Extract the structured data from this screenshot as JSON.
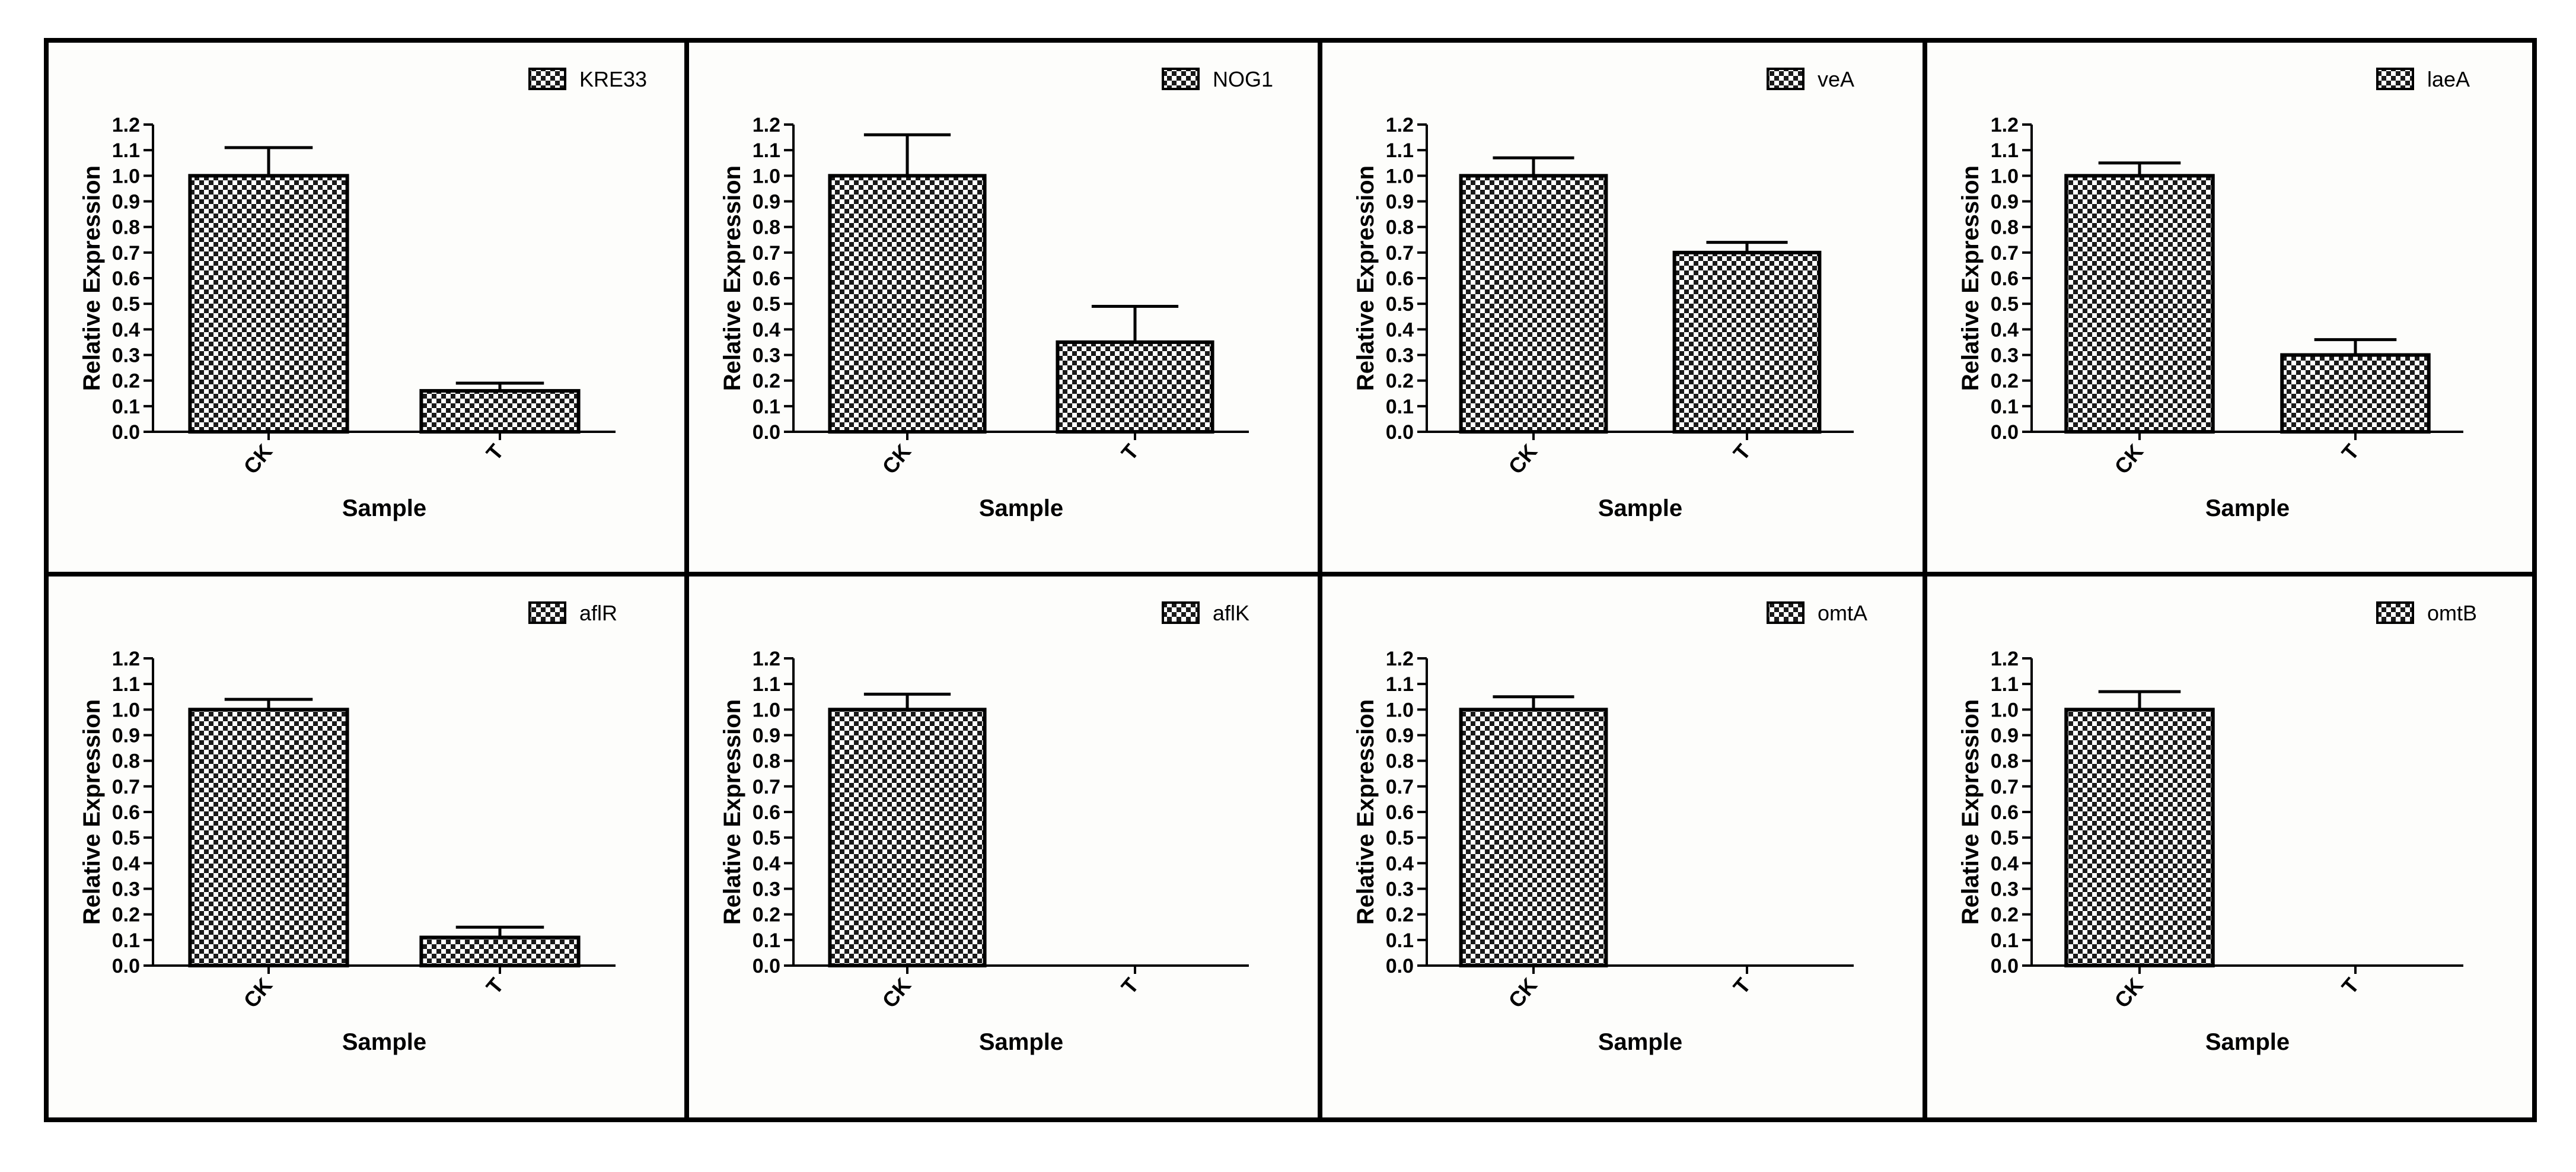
{
  "figure": {
    "background": "#fdfdfb",
    "frame_color": "#000000"
  },
  "chart_data": [
    {
      "type": "bar",
      "legend": "KRE33",
      "categories": [
        "CK",
        "T"
      ],
      "values": [
        1.0,
        0.16
      ],
      "errors": [
        0.11,
        0.03
      ],
      "xlabel": "Sample",
      "ylabel": "Relative Expression",
      "ylim": [
        0,
        1.2
      ],
      "yticks": [
        "0.0",
        "0.1",
        "0.2",
        "0.3",
        "0.4",
        "0.5",
        "0.6",
        "0.7",
        "0.8",
        "0.9",
        "1.0",
        "1.1",
        "1.2"
      ],
      "legend_position": "top-right"
    },
    {
      "type": "bar",
      "legend": "NOG1",
      "categories": [
        "CK",
        "T"
      ],
      "values": [
        1.0,
        0.35
      ],
      "errors": [
        0.16,
        0.14
      ],
      "xlabel": "Sample",
      "ylabel": "Relative Expression",
      "ylim": [
        0,
        1.2
      ],
      "yticks": [
        "0.0",
        "0.1",
        "0.2",
        "0.3",
        "0.4",
        "0.5",
        "0.6",
        "0.7",
        "0.8",
        "0.9",
        "1.0",
        "1.1",
        "1.2"
      ],
      "legend_position": "top-right"
    },
    {
      "type": "bar",
      "legend": "veA",
      "categories": [
        "CK",
        "T"
      ],
      "values": [
        1.0,
        0.7
      ],
      "errors": [
        0.07,
        0.04
      ],
      "xlabel": "Sample",
      "ylabel": "Relative Expression",
      "ylim": [
        0,
        1.2
      ],
      "yticks": [
        "0.0",
        "0.1",
        "0.2",
        "0.3",
        "0.4",
        "0.5",
        "0.6",
        "0.7",
        "0.8",
        "0.9",
        "1.0",
        "1.1",
        "1.2"
      ],
      "legend_position": "top-right"
    },
    {
      "type": "bar",
      "legend": "laeA",
      "categories": [
        "CK",
        "T"
      ],
      "values": [
        1.0,
        0.3
      ],
      "errors": [
        0.05,
        0.06
      ],
      "xlabel": "Sample",
      "ylabel": "Relative Expression",
      "ylim": [
        0,
        1.2
      ],
      "yticks": [
        "0.0",
        "0.1",
        "0.2",
        "0.3",
        "0.4",
        "0.5",
        "0.6",
        "0.7",
        "0.8",
        "0.9",
        "1.0",
        "1.1",
        "1.2"
      ],
      "legend_position": "top-right"
    },
    {
      "type": "bar",
      "legend": "aflR",
      "categories": [
        "CK",
        "T"
      ],
      "values": [
        1.0,
        0.11
      ],
      "errors": [
        0.04,
        0.04
      ],
      "xlabel": "Sample",
      "ylabel": "Relative Expression",
      "ylim": [
        0,
        1.2
      ],
      "yticks": [
        "0.0",
        "0.1",
        "0.2",
        "0.3",
        "0.4",
        "0.5",
        "0.6",
        "0.7",
        "0.8",
        "0.9",
        "1.0",
        "1.1",
        "1.2"
      ],
      "legend_position": "top-right"
    },
    {
      "type": "bar",
      "legend": "aflK",
      "categories": [
        "CK",
        "T"
      ],
      "values": [
        1.0,
        0.0
      ],
      "errors": [
        0.06,
        0.0
      ],
      "xlabel": "Sample",
      "ylabel": "Relative Expression",
      "ylim": [
        0,
        1.2
      ],
      "yticks": [
        "0.0",
        "0.1",
        "0.2",
        "0.3",
        "0.4",
        "0.5",
        "0.6",
        "0.7",
        "0.8",
        "0.9",
        "1.0",
        "1.1",
        "1.2"
      ],
      "legend_position": "top-right"
    },
    {
      "type": "bar",
      "legend": "omtA",
      "categories": [
        "CK",
        "T"
      ],
      "values": [
        1.0,
        0.0
      ],
      "errors": [
        0.05,
        0.0
      ],
      "xlabel": "Sample",
      "ylabel": "Relative Expression",
      "ylim": [
        0,
        1.2
      ],
      "yticks": [
        "0.0",
        "0.1",
        "0.2",
        "0.3",
        "0.4",
        "0.5",
        "0.6",
        "0.7",
        "0.8",
        "0.9",
        "1.0",
        "1.1",
        "1.2"
      ],
      "legend_position": "top-right"
    },
    {
      "type": "bar",
      "legend": "omtB",
      "categories": [
        "CK",
        "T"
      ],
      "values": [
        1.0,
        0.0
      ],
      "errors": [
        0.07,
        0.0
      ],
      "xlabel": "Sample",
      "ylabel": "Relative Expression",
      "ylim": [
        0,
        1.2
      ],
      "yticks": [
        "0.0",
        "0.1",
        "0.2",
        "0.3",
        "0.4",
        "0.5",
        "0.6",
        "0.7",
        "0.8",
        "0.9",
        "1.0",
        "1.1",
        "1.2"
      ],
      "legend_position": "top-right"
    }
  ]
}
